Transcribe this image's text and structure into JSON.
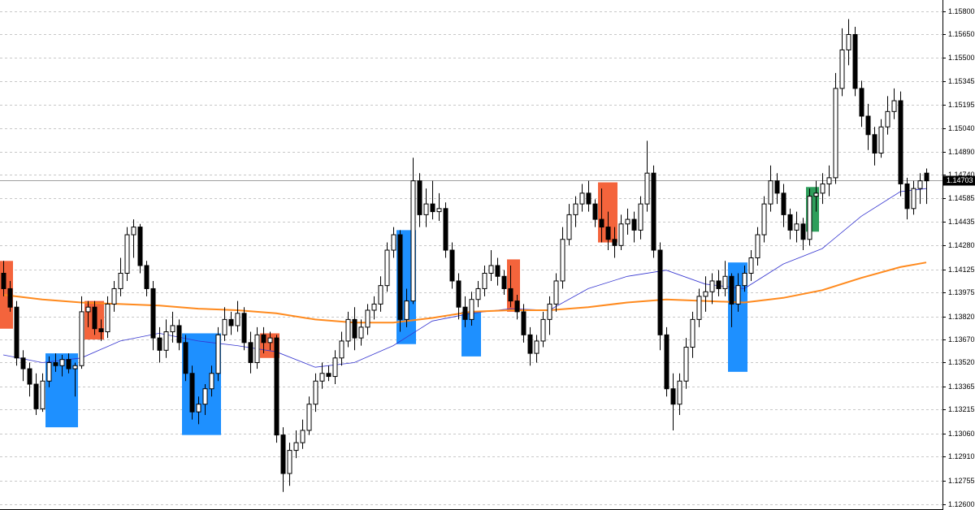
{
  "chart_data": {
    "type": "candlestick",
    "candles": [
      [
        1.141,
        1.1418,
        1.1395,
        1.14
      ],
      [
        1.14,
        1.1405,
        1.1385,
        1.1388
      ],
      [
        1.1388,
        1.1392,
        1.135,
        1.1355
      ],
      [
        1.1355,
        1.136,
        1.134,
        1.1348
      ],
      [
        1.1348,
        1.1352,
        1.133,
        1.1338
      ],
      [
        1.1338,
        1.1345,
        1.1318,
        1.1322
      ],
      [
        1.1322,
        1.1345,
        1.132,
        1.134
      ],
      [
        1.134,
        1.1356,
        1.1336,
        1.1352
      ],
      [
        1.1352,
        1.1358,
        1.1346,
        1.135
      ],
      [
        1.135,
        1.1357,
        1.1343,
        1.1354
      ],
      [
        1.1354,
        1.1358,
        1.1345,
        1.1348
      ],
      [
        1.1348,
        1.1352,
        1.133,
        1.135
      ],
      [
        1.135,
        1.1395,
        1.1348,
        1.1385
      ],
      [
        1.1385,
        1.1392,
        1.1375,
        1.1388
      ],
      [
        1.1388,
        1.1392,
        1.137,
        1.1374
      ],
      [
        1.1374,
        1.138,
        1.1366,
        1.1372
      ],
      [
        1.1372,
        1.1395,
        1.1368,
        1.139
      ],
      [
        1.139,
        1.1405,
        1.1385,
        1.14
      ],
      [
        1.14,
        1.142,
        1.1395,
        1.141
      ],
      [
        1.141,
        1.144,
        1.1405,
        1.1435
      ],
      [
        1.1435,
        1.1445,
        1.142,
        1.144
      ],
      [
        1.144,
        1.1442,
        1.141,
        1.1415
      ],
      [
        1.1415,
        1.1418,
        1.1395,
        1.14
      ],
      [
        1.14,
        1.1405,
        1.136,
        1.1368
      ],
      [
        1.1368,
        1.1375,
        1.1352,
        1.136
      ],
      [
        1.136,
        1.138,
        1.1355,
        1.1372
      ],
      [
        1.1372,
        1.1385,
        1.1365,
        1.1376
      ],
      [
        1.1376,
        1.138,
        1.136,
        1.1365
      ],
      [
        1.1365,
        1.137,
        1.134,
        1.1345
      ],
      [
        1.1345,
        1.135,
        1.1315,
        1.132
      ],
      [
        1.132,
        1.133,
        1.1312,
        1.1325
      ],
      [
        1.1325,
        1.1338,
        1.1318,
        1.1335
      ],
      [
        1.1335,
        1.135,
        1.133,
        1.1345
      ],
      [
        1.1345,
        1.1375,
        1.134,
        1.137
      ],
      [
        1.137,
        1.1388,
        1.1366,
        1.138
      ],
      [
        1.138,
        1.1385,
        1.137,
        1.1376
      ],
      [
        1.1376,
        1.1392,
        1.1372,
        1.1384
      ],
      [
        1.1384,
        1.1388,
        1.136,
        1.1365
      ],
      [
        1.1365,
        1.1372,
        1.1345,
        1.1352
      ],
      [
        1.1352,
        1.1375,
        1.1348,
        1.137
      ],
      [
        1.137,
        1.1375,
        1.1358,
        1.1365
      ],
      [
        1.1365,
        1.1372,
        1.136,
        1.1368
      ],
      [
        1.1368,
        1.137,
        1.13,
        1.1305
      ],
      [
        1.1305,
        1.131,
        1.1268,
        1.128
      ],
      [
        1.128,
        1.13,
        1.1272,
        1.1295
      ],
      [
        1.1295,
        1.1308,
        1.129,
        1.13
      ],
      [
        1.13,
        1.1315,
        1.1296,
        1.1308
      ],
      [
        1.1308,
        1.133,
        1.1305,
        1.1325
      ],
      [
        1.1325,
        1.1345,
        1.132,
        1.134
      ],
      [
        1.134,
        1.1352,
        1.1335,
        1.1345
      ],
      [
        1.1345,
        1.135,
        1.134,
        1.1343
      ],
      [
        1.1343,
        1.136,
        1.1338,
        1.1355
      ],
      [
        1.1355,
        1.1372,
        1.135,
        1.1366
      ],
      [
        1.1366,
        1.1385,
        1.1362,
        1.138
      ],
      [
        1.138,
        1.1388,
        1.136,
        1.1368
      ],
      [
        1.1368,
        1.138,
        1.1363,
        1.1375
      ],
      [
        1.1375,
        1.139,
        1.137,
        1.1386
      ],
      [
        1.1386,
        1.1395,
        1.138,
        1.139
      ],
      [
        1.139,
        1.1408,
        1.1385,
        1.1402
      ],
      [
        1.1402,
        1.143,
        1.1398,
        1.1425
      ],
      [
        1.1425,
        1.144,
        1.142,
        1.1435
      ],
      [
        1.1435,
        1.1438,
        1.1372,
        1.138
      ],
      [
        1.138,
        1.14,
        1.1375,
        1.1392
      ],
      [
        1.1392,
        1.1485,
        1.139,
        1.147
      ],
      [
        1.147,
        1.1475,
        1.144,
        1.1448
      ],
      [
        1.1448,
        1.1465,
        1.144,
        1.1455
      ],
      [
        1.1455,
        1.147,
        1.1445,
        1.145
      ],
      [
        1.145,
        1.1462,
        1.1444,
        1.1452
      ],
      [
        1.1452,
        1.1456,
        1.142,
        1.1425
      ],
      [
        1.1425,
        1.143,
        1.14,
        1.1405
      ],
      [
        1.1405,
        1.141,
        1.138,
        1.1388
      ],
      [
        1.1388,
        1.1395,
        1.1375,
        1.138
      ],
      [
        1.138,
        1.1398,
        1.1376,
        1.1393
      ],
      [
        1.1393,
        1.1405,
        1.1388,
        1.14
      ],
      [
        1.14,
        1.1415,
        1.1395,
        1.141
      ],
      [
        1.141,
        1.1425,
        1.1405,
        1.1415
      ],
      [
        1.1415,
        1.142,
        1.1402,
        1.1408
      ],
      [
        1.1408,
        1.1412,
        1.1396,
        1.14
      ],
      [
        1.14,
        1.1415,
        1.1388,
        1.1392
      ],
      [
        1.1392,
        1.1396,
        1.138,
        1.1385
      ],
      [
        1.1385,
        1.139,
        1.1365,
        1.137
      ],
      [
        1.137,
        1.1375,
        1.135,
        1.1358
      ],
      [
        1.1358,
        1.137,
        1.1352,
        1.1366
      ],
      [
        1.1366,
        1.1385,
        1.1362,
        1.138
      ],
      [
        1.138,
        1.1395,
        1.137,
        1.139
      ],
      [
        1.139,
        1.141,
        1.1385,
        1.1405
      ],
      [
        1.1405,
        1.144,
        1.14,
        1.1432
      ],
      [
        1.1432,
        1.1455,
        1.1428,
        1.1448
      ],
      [
        1.1448,
        1.146,
        1.144,
        1.1455
      ],
      [
        1.1455,
        1.1468,
        1.145,
        1.1462
      ],
      [
        1.1462,
        1.147,
        1.145,
        1.1455
      ],
      [
        1.1455,
        1.1458,
        1.144,
        1.1445
      ],
      [
        1.1445,
        1.1465,
        1.143,
        1.144
      ],
      [
        1.144,
        1.145,
        1.1425,
        1.1432
      ],
      [
        1.1432,
        1.144,
        1.142,
        1.1428
      ],
      [
        1.1428,
        1.1448,
        1.1425,
        1.1442
      ],
      [
        1.1442,
        1.1452,
        1.1435,
        1.1445
      ],
      [
        1.1445,
        1.145,
        1.143,
        1.1438
      ],
      [
        1.1438,
        1.146,
        1.1432,
        1.1455
      ],
      [
        1.1455,
        1.1496,
        1.145,
        1.1475
      ],
      [
        1.1475,
        1.148,
        1.142,
        1.1425
      ],
      [
        1.1425,
        1.143,
        1.136,
        1.137
      ],
      [
        1.137,
        1.1375,
        1.133,
        1.1335
      ],
      [
        1.1335,
        1.1345,
        1.1308,
        1.1325
      ],
      [
        1.1325,
        1.1345,
        1.1318,
        1.134
      ],
      [
        1.134,
        1.1368,
        1.1335,
        1.1362
      ],
      [
        1.1362,
        1.1385,
        1.1355,
        1.138
      ],
      [
        1.138,
        1.14,
        1.1375,
        1.1395
      ],
      [
        1.1395,
        1.1408,
        1.1385,
        1.1398
      ],
      [
        1.1398,
        1.141,
        1.139,
        1.1405
      ],
      [
        1.1405,
        1.1412,
        1.1395,
        1.14
      ],
      [
        1.14,
        1.1418,
        1.1395,
        1.1408
      ],
      [
        1.1408,
        1.141,
        1.1375,
        1.139
      ],
      [
        1.139,
        1.141,
        1.1385,
        1.1402
      ],
      [
        1.1402,
        1.1415,
        1.1398,
        1.141
      ],
      [
        1.141,
        1.1425,
        1.1405,
        1.142
      ],
      [
        1.142,
        1.144,
        1.1415,
        1.1435
      ],
      [
        1.1435,
        1.146,
        1.143,
        1.1455
      ],
      [
        1.1455,
        1.148,
        1.145,
        1.147
      ],
      [
        1.147,
        1.1475,
        1.1455,
        1.1462
      ],
      [
        1.1462,
        1.1468,
        1.144,
        1.1448
      ],
      [
        1.1448,
        1.1452,
        1.1432,
        1.1438
      ],
      [
        1.1438,
        1.145,
        1.143,
        1.1442
      ],
      [
        1.1442,
        1.1446,
        1.1425,
        1.1432
      ],
      [
        1.1432,
        1.1465,
        1.1428,
        1.146
      ],
      [
        1.146,
        1.147,
        1.145,
        1.1462
      ],
      [
        1.1462,
        1.1475,
        1.1455,
        1.1468
      ],
      [
        1.1468,
        1.148,
        1.146,
        1.1472
      ],
      [
        1.1472,
        1.154,
        1.1468,
        1.153
      ],
      [
        1.153,
        1.1569,
        1.1525,
        1.1555
      ],
      [
        1.1555,
        1.1575,
        1.1545,
        1.1565
      ],
      [
        1.1565,
        1.157,
        1.1525,
        1.153
      ],
      [
        1.153,
        1.1535,
        1.1505,
        1.1512
      ],
      [
        1.1512,
        1.152,
        1.149,
        1.15
      ],
      [
        1.15,
        1.1505,
        1.148,
        1.1488
      ],
      [
        1.1488,
        1.151,
        1.1485,
        1.1505
      ],
      [
        1.1505,
        1.1525,
        1.15,
        1.1515
      ],
      [
        1.1515,
        1.153,
        1.151,
        1.1522
      ],
      [
        1.1522,
        1.1528,
        1.146,
        1.1468
      ],
      [
        1.1468,
        1.1472,
        1.1445,
        1.1452
      ],
      [
        1.1452,
        1.147,
        1.1448,
        1.1465
      ],
      [
        1.1465,
        1.1475,
        1.1455,
        1.147
      ],
      [
        1.1475,
        1.1478,
        1.1455,
        1.147
      ]
    ],
    "lines": [
      {
        "color": "#3535d0",
        "width": 0.8,
        "x": [
          0,
          6,
          12,
          18,
          24,
          30,
          36,
          42,
          48,
          54,
          60,
          66,
          72,
          78,
          84,
          90,
          96,
          102,
          108,
          114,
          120,
          126,
          132,
          138,
          142
        ],
        "values": [
          1.1357,
          1.1352,
          1.1355,
          1.1366,
          1.1371,
          1.1366,
          1.1363,
          1.1359,
          1.1349,
          1.1352,
          1.1363,
          1.1379,
          1.1384,
          1.1387,
          1.1386,
          1.14,
          1.1408,
          1.1412,
          1.1403,
          1.14,
          1.1416,
          1.1426,
          1.1447,
          1.1463,
          1.1465
        ]
      },
      {
        "color": "#ff8a1e",
        "width": 2,
        "x": [
          0,
          6,
          12,
          18,
          24,
          30,
          36,
          42,
          48,
          54,
          60,
          66,
          72,
          78,
          84,
          90,
          96,
          102,
          108,
          114,
          120,
          126,
          132,
          138,
          142
        ],
        "values": [
          1.1396,
          1.1393,
          1.1391,
          1.139,
          1.1389,
          1.1387,
          1.1386,
          1.1384,
          1.138,
          1.1378,
          1.1378,
          1.1381,
          1.1385,
          1.1386,
          1.1386,
          1.1388,
          1.1391,
          1.1393,
          1.1392,
          1.1391,
          1.1394,
          1.1399,
          1.1407,
          1.1414,
          1.1417
        ]
      }
    ],
    "zones": [
      {
        "start": 0,
        "end": 1,
        "top": 1.1418,
        "bottom": 1.1374,
        "color": "#f4643c"
      },
      {
        "start": 7,
        "end": 11,
        "top": 1.1358,
        "bottom": 1.131,
        "color": "#1e90ff"
      },
      {
        "start": 13,
        "end": 15,
        "top": 1.1392,
        "bottom": 1.1367,
        "color": "#f4643c"
      },
      {
        "start": 28,
        "end": 33,
        "top": 1.1371,
        "bottom": 1.1305,
        "color": "#1e90ff"
      },
      {
        "start": 40,
        "end": 42,
        "top": 1.1371,
        "bottom": 1.1355,
        "color": "#f4643c"
      },
      {
        "start": 61,
        "end": 63,
        "top": 1.1438,
        "bottom": 1.1364,
        "color": "#1e90ff"
      },
      {
        "start": 71,
        "end": 73,
        "top": 1.1385,
        "bottom": 1.1356,
        "color": "#1e90ff"
      },
      {
        "start": 78,
        "end": 79,
        "top": 1.1419,
        "bottom": 1.1385,
        "color": "#f4643c"
      },
      {
        "start": 92,
        "end": 94,
        "top": 1.1469,
        "bottom": 1.143,
        "color": "#f4643c"
      },
      {
        "start": 112,
        "end": 114,
        "top": 1.1417,
        "bottom": 1.1346,
        "color": "#1e90ff"
      },
      {
        "start": 124,
        "end": 125,
        "top": 1.1466,
        "bottom": 1.1437,
        "color": "#2e9e5b"
      }
    ],
    "ylim": [
      1.12563,
      1.15874
    ],
    "yticks": [
      {
        "value": 1.158,
        "label": "1.15800"
      },
      {
        "value": 1.1565,
        "label": "1.15650"
      },
      {
        "value": 1.155,
        "label": "1.15500"
      },
      1.15345,
      1.15195,
      {
        "value": 1.1504,
        "label": "1.15040"
      },
      {
        "value": 1.1489,
        "label": "1.14890"
      },
      {
        "value": 1.1474,
        "label": "1.14740"
      },
      1.14585,
      1.14435,
      {
        "value": 1.1428,
        "label": "1.14280"
      },
      1.14125,
      1.13975,
      {
        "value": 1.1382,
        "label": "1.13820"
      },
      {
        "value": 1.1367,
        "label": "1.13670"
      },
      {
        "value": 1.1352,
        "label": "1.13520"
      },
      1.13365,
      1.13215,
      {
        "value": 1.1306,
        "label": "1.13060"
      },
      {
        "value": 1.1291,
        "label": "1.12910"
      },
      1.12755,
      {
        "value": 1.126,
        "label": "1.12600"
      }
    ],
    "current_price": {
      "value": 1.14703,
      "label": "1.14703"
    },
    "grid": true
  }
}
